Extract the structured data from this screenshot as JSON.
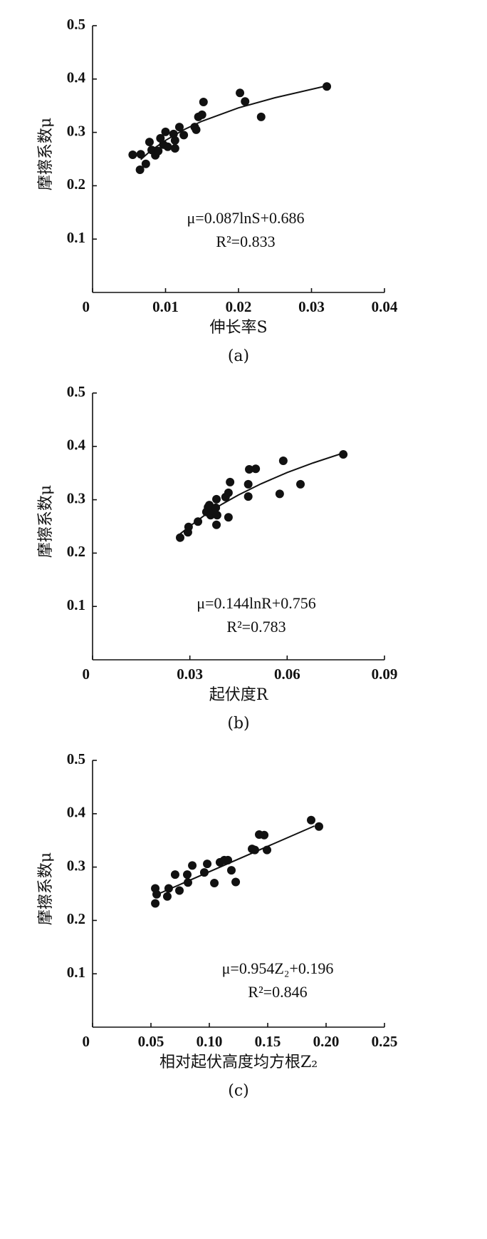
{
  "chart_data": [
    {
      "type": "scatter",
      "y_label": "摩擦系数μ",
      "x_label": "伸长率S",
      "caption": "(a)",
      "equation": "μ=0.087lnS+0.686",
      "r2": "R²=0.833",
      "color": "#111111",
      "xlim": [
        0,
        0.04
      ],
      "xticks": [
        0,
        0.01,
        0.02,
        0.03,
        0.04
      ],
      "ylim": [
        0,
        0.5
      ],
      "yticks": [
        0.1,
        0.2,
        0.3,
        0.4,
        0.5
      ],
      "x": [
        0.0055,
        0.0065,
        0.0066,
        0.0073,
        0.0078,
        0.0081,
        0.0086,
        0.009,
        0.0093,
        0.0097,
        0.01,
        0.0103,
        0.0111,
        0.0113,
        0.0113,
        0.0119,
        0.0125,
        0.014,
        0.0142,
        0.0145,
        0.015,
        0.0152,
        0.0202,
        0.0209,
        0.0231,
        0.0321
      ],
      "values": [
        0.258,
        0.23,
        0.259,
        0.241,
        0.282,
        0.267,
        0.257,
        0.265,
        0.289,
        0.277,
        0.301,
        0.273,
        0.297,
        0.27,
        0.285,
        0.31,
        0.295,
        0.31,
        0.305,
        0.329,
        0.333,
        0.357,
        0.374,
        0.358,
        0.329,
        0.386
      ],
      "fit": {
        "x": [
          0.0066,
          0.008,
          0.01,
          0.0125,
          0.015,
          0.02,
          0.025,
          0.032
        ],
        "values": [
          0.249,
          0.266,
          0.285,
          0.305,
          0.321,
          0.346,
          0.365,
          0.387
        ]
      }
    },
    {
      "type": "scatter",
      "y_label": "摩擦系数μ",
      "x_label": "起伏度R",
      "caption": "(b)",
      "equation": "μ=0.144lnR+0.756",
      "r2": "R²=0.783",
      "color": "#111111",
      "xlim": [
        0,
        0.09
      ],
      "xticks": [
        0,
        0.03,
        0.06,
        0.09
      ],
      "ylim": [
        0,
        0.5
      ],
      "yticks": [
        0.1,
        0.2,
        0.3,
        0.4,
        0.5
      ],
      "x": [
        0.027,
        0.0294,
        0.0296,
        0.0325,
        0.0351,
        0.0356,
        0.036,
        0.0364,
        0.0373,
        0.038,
        0.0382,
        0.0382,
        0.0384,
        0.041,
        0.0419,
        0.0419,
        0.0424,
        0.048,
        0.048,
        0.0483,
        0.0503,
        0.0577,
        0.0588,
        0.0641,
        0.0773
      ],
      "values": [
        0.229,
        0.239,
        0.249,
        0.259,
        0.277,
        0.286,
        0.29,
        0.271,
        0.279,
        0.285,
        0.301,
        0.253,
        0.271,
        0.305,
        0.313,
        0.267,
        0.333,
        0.329,
        0.306,
        0.357,
        0.358,
        0.311,
        0.373,
        0.329,
        0.385
      ],
      "fit": {
        "x": [
          0.027,
          0.031,
          0.035,
          0.04,
          0.045,
          0.052,
          0.06,
          0.068,
          0.077
        ],
        "values": [
          0.236,
          0.255,
          0.273,
          0.292,
          0.309,
          0.33,
          0.351,
          0.369,
          0.387
        ]
      }
    },
    {
      "type": "scatter",
      "y_label": "摩擦系数μ",
      "x_label": "相对起伏高度均方根Z₂",
      "caption": "(c)",
      "equation": "μ=0.954Z₂+0.196",
      "r2": "R²=0.846",
      "color": "#111111",
      "xlim": [
        0,
        0.25
      ],
      "xticks": [
        0,
        0.05,
        {
          "value": 0.1,
          "label": "0.10"
        },
        0.15,
        {
          "value": 0.2,
          "label": "0.20"
        },
        0.25
      ],
      "ylim": [
        0,
        0.5
      ],
      "yticks": [
        0.1,
        0.2,
        0.3,
        0.4,
        0.5
      ],
      "x": [
        0.0537,
        0.0537,
        0.0549,
        0.064,
        0.0652,
        0.0707,
        0.0744,
        0.0811,
        0.0817,
        0.0854,
        0.0957,
        0.0982,
        0.1043,
        0.1091,
        0.1128,
        0.1159,
        0.1189,
        0.1226,
        0.1366,
        0.139,
        0.1427,
        0.147,
        0.1494,
        0.1872,
        0.1939
      ],
      "values": [
        0.232,
        0.26,
        0.249,
        0.245,
        0.26,
        0.286,
        0.256,
        0.286,
        0.271,
        0.303,
        0.29,
        0.306,
        0.27,
        0.309,
        0.313,
        0.313,
        0.294,
        0.272,
        0.334,
        0.332,
        0.361,
        0.36,
        0.332,
        0.388,
        0.376
      ],
      "fit": {
        "x": [
          0.054,
          0.19
        ],
        "values": [
          0.2475,
          0.377
        ]
      }
    }
  ]
}
